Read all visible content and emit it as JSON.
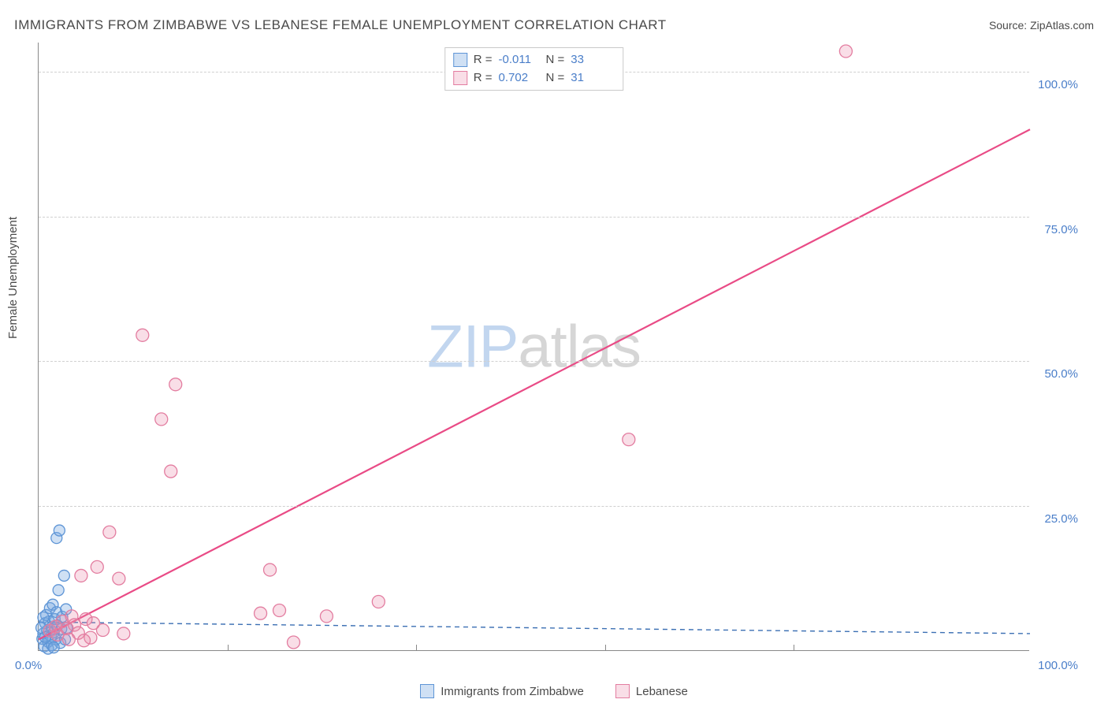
{
  "header": {
    "title": "IMMIGRANTS FROM ZIMBABWE VS LEBANESE FEMALE UNEMPLOYMENT CORRELATION CHART",
    "source": "Source: ZipAtlas.com"
  },
  "axes": {
    "ylabel": "Female Unemployment",
    "xlim": [
      0,
      105
    ],
    "ylim": [
      0,
      105
    ],
    "yticks": [
      {
        "v": 25,
        "label": "25.0%"
      },
      {
        "v": 50,
        "label": "50.0%"
      },
      {
        "v": 75,
        "label": "75.0%"
      },
      {
        "v": 100,
        "label": "100.0%"
      }
    ],
    "xtick_positions": [
      20,
      40,
      60,
      80
    ],
    "xtick_labels": [
      {
        "v": 0,
        "label": "0.0%"
      },
      {
        "v": 100,
        "label": "100.0%"
      }
    ],
    "grid_color": "#d0d0d0",
    "axis_color": "#898989",
    "tick_label_color": "#4a7ec9"
  },
  "series": {
    "zimbabwe": {
      "label": "Immigrants from Zimbabwe",
      "R": "-0.011",
      "N": "33",
      "marker_fill": "rgba(118,166,224,0.35)",
      "marker_stroke": "#5e95d6",
      "marker_radius": 7,
      "line_color": "#3b6fb3",
      "line_dash": "6,5",
      "line_width": 1.4,
      "trend": {
        "x1": 0,
        "y1": 5.0,
        "x2": 105,
        "y2": 3.0
      },
      "points": [
        [
          0.4,
          2.1
        ],
        [
          0.5,
          3.0
        ],
        [
          0.7,
          4.8
        ],
        [
          0.8,
          6.2
        ],
        [
          0.9,
          3.5
        ],
        [
          1.0,
          1.6
        ],
        [
          1.1,
          5.1
        ],
        [
          1.2,
          7.4
        ],
        [
          1.3,
          2.5
        ],
        [
          1.4,
          4.1
        ],
        [
          1.5,
          8.0
        ],
        [
          1.6,
          3.2
        ],
        [
          1.7,
          5.5
        ],
        [
          1.8,
          2.0
        ],
        [
          1.9,
          6.7
        ],
        [
          2.0,
          4.4
        ],
        [
          2.1,
          10.5
        ],
        [
          2.3,
          1.4
        ],
        [
          2.4,
          3.8
        ],
        [
          2.5,
          5.9
        ],
        [
          2.7,
          13.0
        ],
        [
          2.9,
          7.2
        ],
        [
          3.0,
          4.0
        ],
        [
          0.6,
          0.8
        ],
        [
          1.0,
          0.4
        ],
        [
          1.4,
          1.0
        ],
        [
          1.9,
          19.5
        ],
        [
          2.2,
          20.8
        ],
        [
          0.3,
          4.0
        ],
        [
          0.5,
          5.8
        ],
        [
          0.7,
          2.4
        ],
        [
          1.6,
          0.6
        ],
        [
          2.8,
          2.0
        ]
      ]
    },
    "lebanese": {
      "label": "Lebanese",
      "R": "0.702",
      "N": "31",
      "marker_fill": "rgba(235,138,168,0.28)",
      "marker_stroke": "#e37da0",
      "marker_radius": 8,
      "line_color": "#e94b86",
      "line_dash": "",
      "line_width": 2.2,
      "trend": {
        "x1": 0,
        "y1": 2.0,
        "x2": 105,
        "y2": 90.0
      },
      "points": [
        [
          1.2,
          3.5
        ],
        [
          1.8,
          4.2
        ],
        [
          2.0,
          2.8
        ],
        [
          2.5,
          5.1
        ],
        [
          3.0,
          3.9
        ],
        [
          3.2,
          2.0
        ],
        [
          3.5,
          6.0
        ],
        [
          3.8,
          4.5
        ],
        [
          4.2,
          3.1
        ],
        [
          4.5,
          13.0
        ],
        [
          5.0,
          5.5
        ],
        [
          5.5,
          2.3
        ],
        [
          5.8,
          4.8
        ],
        [
          6.2,
          14.5
        ],
        [
          6.8,
          3.6
        ],
        [
          7.5,
          20.5
        ],
        [
          8.5,
          12.5
        ],
        [
          11.0,
          54.5
        ],
        [
          13.0,
          40.0
        ],
        [
          14.0,
          31.0
        ],
        [
          14.5,
          46.0
        ],
        [
          23.5,
          6.5
        ],
        [
          24.5,
          14.0
        ],
        [
          25.5,
          7.0
        ],
        [
          30.5,
          6.0
        ],
        [
          36.0,
          8.5
        ],
        [
          27.0,
          1.5
        ],
        [
          62.5,
          36.5
        ],
        [
          85.5,
          103.5
        ],
        [
          4.8,
          1.8
        ],
        [
          9.0,
          3.0
        ]
      ]
    }
  },
  "legend_top": {
    "r_label": "R",
    "n_label": "N",
    "eq": "="
  },
  "watermark": {
    "zip": "ZIP",
    "atlas": "atlas"
  },
  "style": {
    "background_color": "#ffffff",
    "title_color": "#4a4a4a",
    "title_fontsize": 17,
    "ylabel_fontsize": 15,
    "legend_border": "#c9c9c9"
  }
}
